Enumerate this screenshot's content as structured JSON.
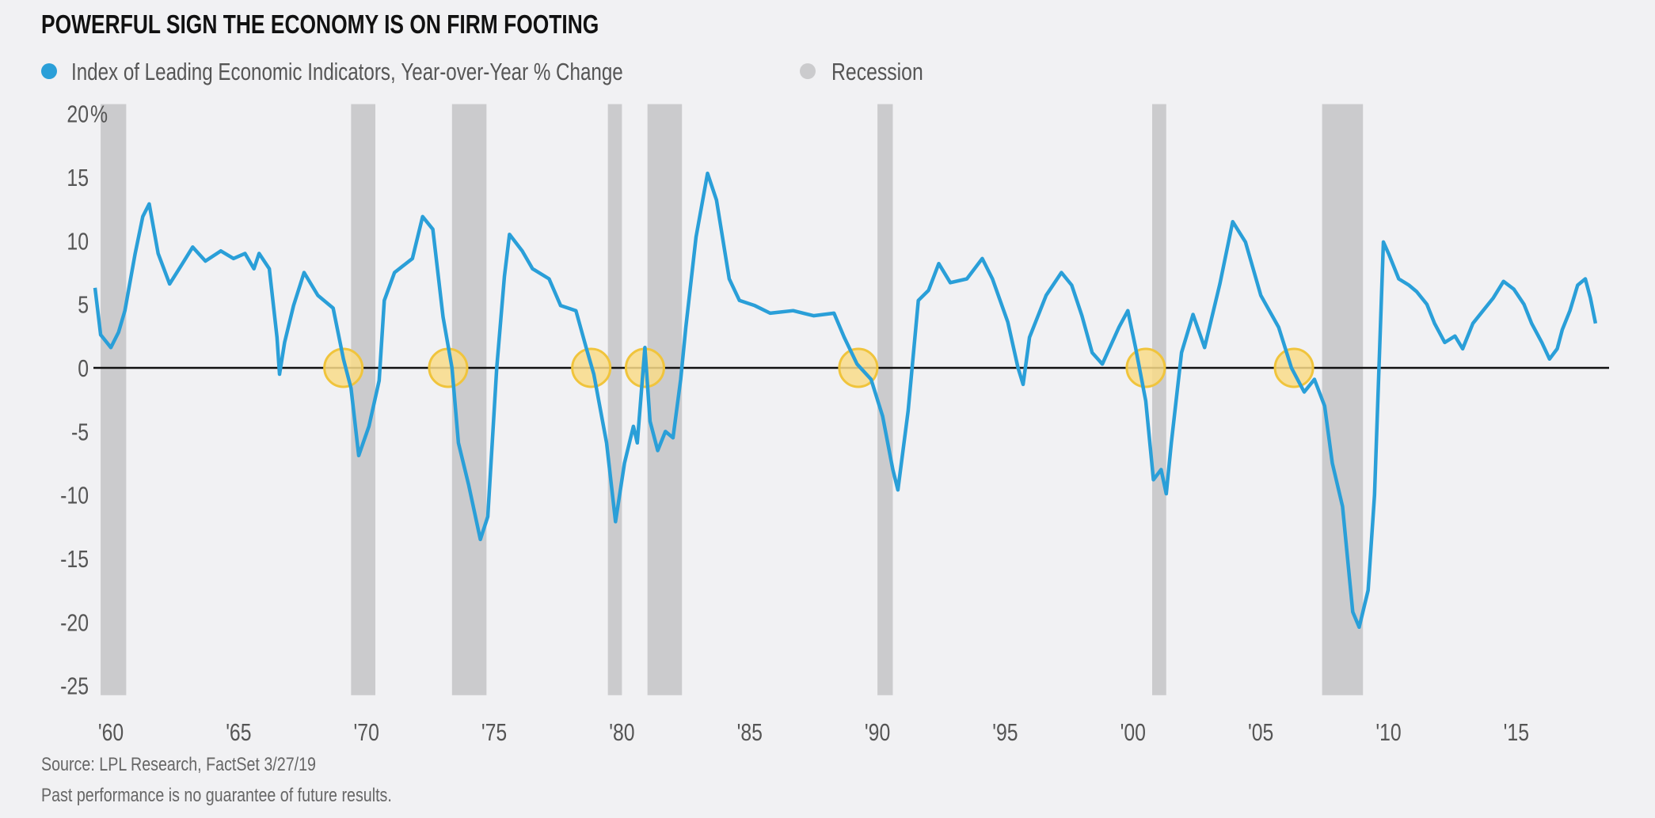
{
  "chart_data": {
    "type": "line",
    "title": "POWERFUL SIGN THE ECONOMY IS ON FIRM FOOTING",
    "legend": {
      "series_label_main": "Index of Leading Economic Indicators,",
      "series_label_sub": "Year-over-Year % Change",
      "recession_label": "Recession",
      "placement": "top-left"
    },
    "colors": {
      "line": "#2a9fd8",
      "recession": "#cbcbcd",
      "highlight_fill": "#f9dc88",
      "highlight_stroke": "#f0c43c",
      "zero_line": "#111111",
      "background": "#f1f1f3"
    },
    "ylim": [
      -25,
      20
    ],
    "y_ticks": [
      {
        "value": 20,
        "label": "20"
      },
      {
        "value": 15,
        "label": "15"
      },
      {
        "value": 10,
        "label": "10"
      },
      {
        "value": 5,
        "label": "5"
      },
      {
        "value": 0,
        "label": "0"
      },
      {
        "value": -5,
        "label": "-5"
      },
      {
        "value": -10,
        "label": "-10"
      },
      {
        "value": -15,
        "label": "-15"
      },
      {
        "value": -20,
        "label": "-20"
      },
      {
        "value": -25,
        "label": "-25"
      }
    ],
    "y_unit": "%",
    "x_ticks": [
      {
        "value": 1960,
        "label": "'60"
      },
      {
        "value": 1965,
        "label": "'65"
      },
      {
        "value": 1970,
        "label": "'70"
      },
      {
        "value": 1975,
        "label": "'75"
      },
      {
        "value": 1980,
        "label": "'80"
      },
      {
        "value": 1985,
        "label": "'85"
      },
      {
        "value": 1990,
        "label": "'90"
      },
      {
        "value": 1995,
        "label": "'95"
      },
      {
        "value": 2000,
        "label": "'00"
      },
      {
        "value": 2005,
        "label": "'05"
      },
      {
        "value": 2010,
        "label": "'10"
      },
      {
        "value": 2015,
        "label": "'15"
      }
    ],
    "grid": false,
    "recessions": [
      [
        1960.1,
        1961.1
      ],
      [
        1969.9,
        1970.85
      ],
      [
        1973.85,
        1975.2
      ],
      [
        1979.95,
        1980.5
      ],
      [
        1981.5,
        1982.85
      ],
      [
        1990.5,
        1991.1
      ],
      [
        2001.25,
        2001.8
      ],
      [
        2007.9,
        2009.5
      ]
    ],
    "highlighted_zero_crossings": [
      1969.6,
      1973.7,
      1979.3,
      1981.4,
      1989.75,
      2001.0,
      2006.8
    ],
    "series": [
      {
        "name": "Index of Leading Economic Indicators, Year-over-Year % Change",
        "x": [
          1959.88,
          1960.1,
          1960.5,
          1960.8,
          1961.05,
          1961.45,
          1961.75,
          1962.0,
          1962.35,
          1962.8,
          1963.3,
          1963.7,
          1964.2,
          1964.8,
          1965.3,
          1965.75,
          1966.1,
          1966.3,
          1966.7,
          1967.0,
          1967.1,
          1967.3,
          1967.65,
          1968.06,
          1968.6,
          1969.2,
          1969.6,
          1969.9,
          1970.2,
          1970.6,
          1971.0,
          1971.2,
          1971.6,
          1972.3,
          1972.7,
          1973.1,
          1973.5,
          1973.85,
          1974.1,
          1974.5,
          1974.96,
          1975.25,
          1975.6,
          1975.9,
          1976.1,
          1976.6,
          1977.0,
          1977.65,
          1978.1,
          1978.7,
          1979.1,
          1979.4,
          1979.9,
          1980.25,
          1980.6,
          1980.95,
          1981.1,
          1981.4,
          1981.6,
          1981.9,
          1982.2,
          1982.5,
          1982.8,
          1983.0,
          1983.4,
          1983.85,
          1984.2,
          1984.7,
          1985.1,
          1985.7,
          1986.3,
          1987.2,
          1988.0,
          1988.8,
          1989.2,
          1989.7,
          1990.25,
          1990.7,
          1991.1,
          1991.3,
          1991.7,
          1992.1,
          1992.5,
          1992.9,
          1993.35,
          1994.0,
          1994.6,
          1995.0,
          1995.6,
          1996.0,
          1996.2,
          1996.45,
          1997.1,
          1997.7,
          1998.1,
          1998.5,
          1998.9,
          1999.3,
          1999.95,
          2000.3,
          2000.6,
          2001.0,
          2001.3,
          2001.6,
          2001.8,
          2002.0,
          2002.4,
          2002.85,
          2003.3,
          2003.9,
          2004.4,
          2004.9,
          2005.5,
          2006.2,
          2006.7,
          2007.2,
          2007.6,
          2008.0,
          2008.3,
          2008.7,
          2009.1,
          2009.35,
          2009.7,
          2009.95,
          2010.3,
          2010.5,
          2010.9,
          2011.3,
          2011.6,
          2012.0,
          2012.3,
          2012.7,
          2013.1,
          2013.4,
          2013.8,
          2014.2,
          2014.6,
          2015.0,
          2015.4,
          2015.8,
          2016.1,
          2016.5,
          2016.8,
          2017.1,
          2017.3,
          2017.6,
          2017.9,
          2018.2,
          2018.4,
          2018.6
        ],
        "values": [
          6.3,
          2.6,
          1.6,
          2.8,
          4.5,
          9.0,
          11.9,
          12.9,
          9.0,
          6.6,
          8.2,
          9.5,
          8.4,
          9.2,
          8.6,
          9.0,
          7.8,
          9.0,
          7.8,
          2.4,
          -0.5,
          2.0,
          4.9,
          7.5,
          5.7,
          4.7,
          0.7,
          -1.6,
          -6.9,
          -4.6,
          -1.0,
          5.3,
          7.5,
          8.6,
          11.9,
          10.9,
          4.0,
          0.0,
          -5.9,
          -9.2,
          -13.5,
          -11.7,
          0.0,
          7.2,
          10.5,
          9.2,
          7.8,
          7.0,
          4.9,
          4.5,
          1.6,
          -0.5,
          -5.9,
          -12.1,
          -7.5,
          -4.6,
          -5.9,
          1.6,
          -4.2,
          -6.5,
          -5.0,
          -5.5,
          -0.9,
          3.2,
          10.3,
          15.3,
          13.2,
          7.0,
          5.3,
          4.9,
          4.3,
          4.5,
          4.1,
          4.3,
          2.4,
          0.3,
          -0.9,
          -3.8,
          -8.0,
          -9.6,
          -3.4,
          5.3,
          6.1,
          8.2,
          6.7,
          7.0,
          8.6,
          7.0,
          3.6,
          0.0,
          -1.3,
          2.4,
          5.7,
          7.5,
          6.5,
          4.1,
          1.2,
          0.3,
          3.2,
          4.5,
          1.6,
          -2.6,
          -8.8,
          -8.0,
          -9.9,
          -5.9,
          1.2,
          4.2,
          1.6,
          6.6,
          11.5,
          9.9,
          5.7,
          3.2,
          0.0,
          -1.9,
          -0.9,
          -3.0,
          -7.5,
          -10.9,
          -19.2,
          -20.4,
          -17.5,
          -10.0,
          9.9,
          9.0,
          7.0,
          6.5,
          6.0,
          5.0,
          3.5,
          2.0,
          2.5,
          1.5,
          3.5,
          4.5,
          5.5,
          6.8,
          6.2,
          5.0,
          3.5,
          2.0,
          0.7,
          1.5,
          3.0,
          4.5,
          6.5,
          7.0,
          5.5,
          3.5
        ]
      }
    ],
    "source": "Source: LPL Research, FactSet  3/27/19",
    "disclaimer": "Past performance is no guarantee of future results."
  }
}
